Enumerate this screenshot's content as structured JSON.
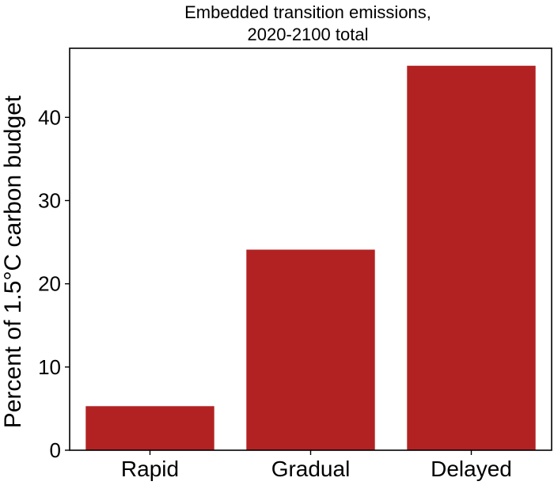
{
  "chart_data": {
    "type": "bar",
    "title_lines": [
      "Embedded transition emissions,",
      "2020-2100 total"
    ],
    "xlabel": "",
    "ylabel": "Percent of 1.5°C carbon budget",
    "categories": [
      "Rapid",
      "Gradual",
      "Delayed"
    ],
    "values": [
      5.3,
      24.1,
      46.2
    ],
    "ylim": [
      0,
      48.3
    ],
    "yticks": [
      0,
      10,
      20,
      30,
      40
    ],
    "bar_color": "#b22222",
    "grid": false,
    "legend": false
  }
}
